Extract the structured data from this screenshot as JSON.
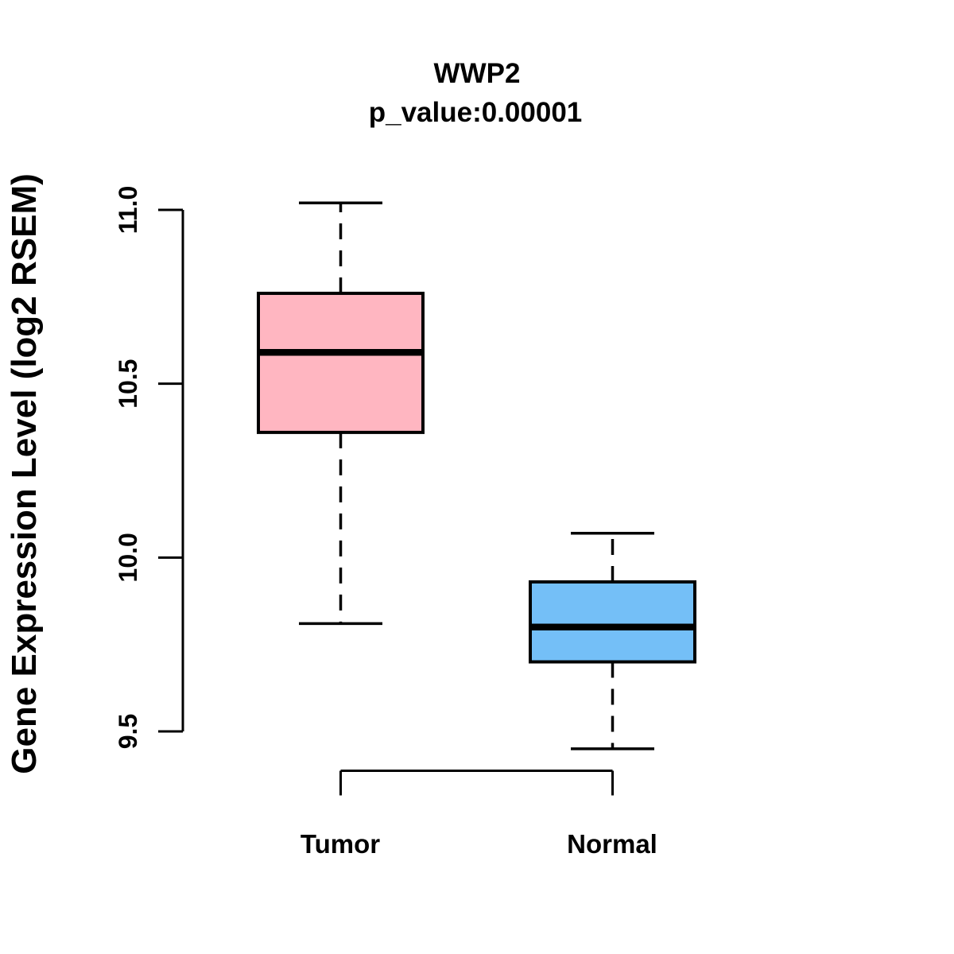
{
  "chart_data": {
    "type": "boxplot",
    "title": "WWP2",
    "subtitle": "p_value:0.00001",
    "ylabel": "Gene Expression Level (log2 RSEM)",
    "xlabel": "",
    "categories": [
      "Tumor",
      "Normal"
    ],
    "yticks": [
      "9.5",
      "10.0",
      "10.5",
      "11.0"
    ],
    "ylim": [
      9.35,
      11.05
    ],
    "grid": false,
    "legend": "none",
    "series": [
      {
        "name": "Tumor",
        "color": "#FFB6C1",
        "whisker_low": 9.81,
        "q1": 10.36,
        "median": 10.59,
        "q3": 10.76,
        "whisker_high": 11.02
      },
      {
        "name": "Normal",
        "color": "#74BFF7",
        "whisker_low": 9.45,
        "q1": 9.7,
        "median": 9.8,
        "q3": 9.93,
        "whisker_high": 10.07
      }
    ],
    "colors": {
      "stroke": "#000000",
      "background": "#ffffff",
      "tumor_fill": "#FFB6C1",
      "normal_fill": "#74BFF7"
    }
  }
}
